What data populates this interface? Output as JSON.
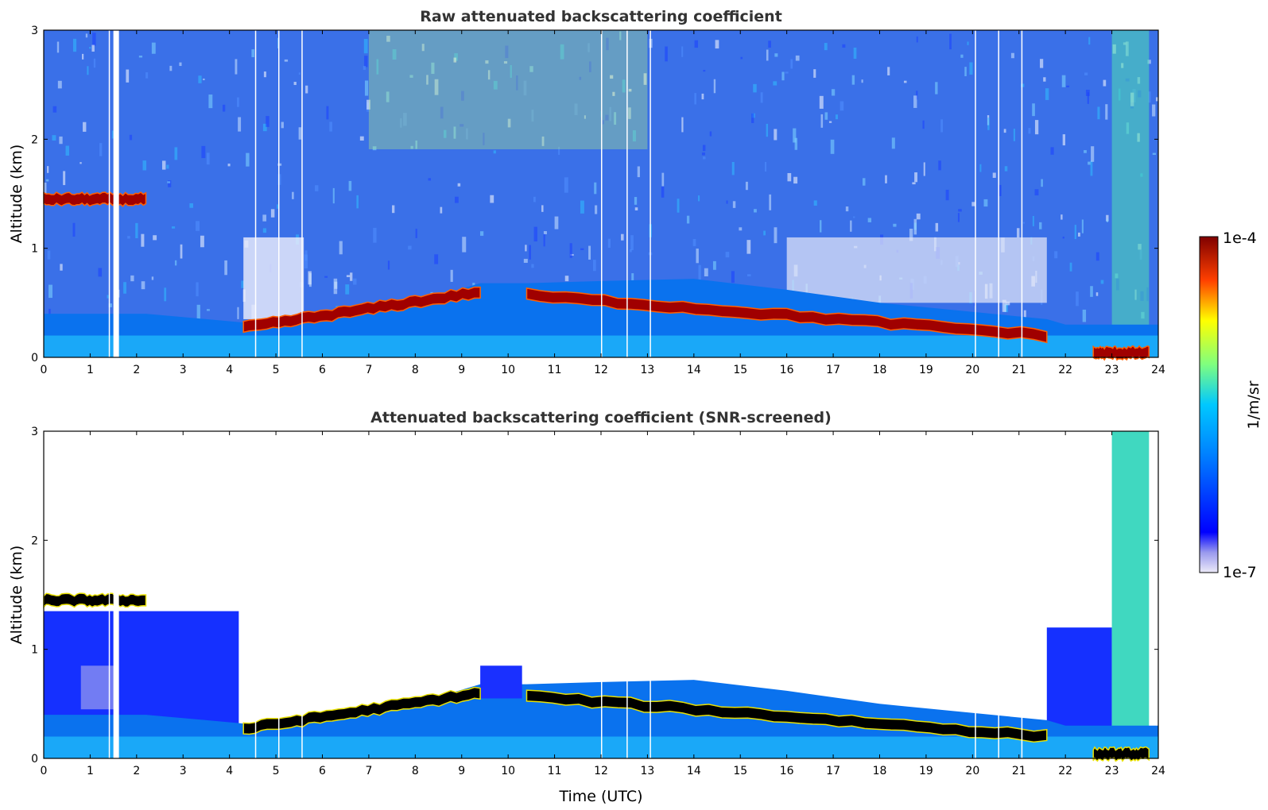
{
  "chart_data": [
    {
      "type": "heatmap",
      "title": "Raw attenuated backscattering coefficient",
      "xlabel": "",
      "ylabel": "Altitude (km)",
      "xlim": [
        0,
        24
      ],
      "ylim": [
        0,
        3
      ],
      "xticks": [
        "0",
        "1",
        "2",
        "3",
        "4",
        "5",
        "6",
        "7",
        "8",
        "9",
        "10",
        "11",
        "12",
        "13",
        "14",
        "15",
        "16",
        "17",
        "18",
        "19",
        "20",
        "21",
        "22",
        "23",
        "24"
      ],
      "yticks": [
        "0",
        "1",
        "2",
        "3"
      ],
      "layers": [
        {
          "t_start": 0.0,
          "t_end": 2.2,
          "altitude_km": 1.45
        },
        {
          "t_start": 4.3,
          "t_end": 9.4,
          "altitude_km_start": 0.27,
          "altitude_km_end": 0.6
        },
        {
          "t_start": 10.4,
          "t_end": 21.6,
          "altitude_km_start": 0.57,
          "altitude_km_end": 0.2
        },
        {
          "t_start": 22.6,
          "t_end": 23.8,
          "altitude_km": 0.04
        }
      ]
    },
    {
      "type": "heatmap",
      "title": "Attenuated backscattering coefficient (SNR-screened)",
      "xlabel": "Time (UTC)",
      "ylabel": "Altitude (km)",
      "xlim": [
        0,
        24
      ],
      "ylim": [
        0,
        3
      ],
      "xticks": [
        "0",
        "1",
        "2",
        "3",
        "4",
        "5",
        "6",
        "7",
        "8",
        "9",
        "10",
        "11",
        "12",
        "13",
        "14",
        "15",
        "16",
        "17",
        "18",
        "19",
        "20",
        "21",
        "22",
        "23",
        "24"
      ],
      "yticks": [
        "0",
        "1",
        "2",
        "3"
      ]
    }
  ],
  "colorbar": {
    "max_label": "1e-4",
    "min_label": "1e-7",
    "unit_label": "1/m/sr",
    "scale": "log",
    "colormap": [
      "#e8e8f8",
      "#0000ff",
      "#00bfff",
      "#7fff7f",
      "#ffff00",
      "#ff4000",
      "#7f0000"
    ]
  }
}
